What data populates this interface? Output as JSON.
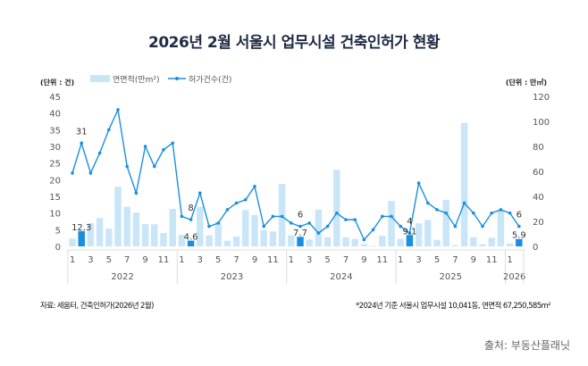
{
  "title": "2026년 2월 서울시 업무시설 건축인허가 현황",
  "notes": {
    "source_left": "자료: 세움터, 건축인허가(2026년 2월)",
    "footnote_right": "*2024년 기준 서울시 업무시설 10,041동, 연면적 67,250,585m²",
    "credit": "출처: 부동산플래닛"
  },
  "chart_data": {
    "type": "bar+line",
    "title": "2026년 2월 서울시 업무시설 건축인허가 현황",
    "left_axis_label": "(단위 : 건)",
    "right_axis_label": "(단위 : 만㎡)",
    "ylim_left": [
      0,
      45
    ],
    "yticks_left": [
      0,
      5,
      10,
      15,
      20,
      25,
      30,
      35,
      40,
      45
    ],
    "ylim_right": [
      0,
      120
    ],
    "yticks_right": [
      0,
      20,
      40,
      60,
      80,
      100,
      120
    ],
    "legend": [
      "연면적(만m²)",
      "허가건수(건)"
    ],
    "legend_position": "top-left",
    "years": [
      {
        "label": "2022",
        "months": 12
      },
      {
        "label": "2023",
        "months": 12
      },
      {
        "label": "2024",
        "months": 12
      },
      {
        "label": "2025",
        "months": 12
      },
      {
        "label": "2026",
        "months": 2
      }
    ],
    "month_ticks": [
      "1",
      "3",
      "5",
      "7",
      "9",
      "11"
    ],
    "colors": {
      "bar": "#c9e6f8",
      "bar_highlight": "#1a8fe0",
      "line": "#1a8fe0"
    },
    "series": [
      {
        "name": "연면적(만m²)",
        "axis": "right",
        "type": "bar",
        "values": [
          6.2,
          12.3,
          18.6,
          22.7,
          14.3,
          47.7,
          31.7,
          27,
          17.9,
          17.7,
          10.7,
          30,
          9.3,
          4.6,
          31.7,
          8.8,
          19,
          4.5,
          7.9,
          29,
          25,
          13,
          12,
          50,
          8.8,
          7.7,
          5.5,
          29.4,
          7.4,
          61.3,
          7.2,
          6,
          1.9,
          0.5,
          8.4,
          36.3,
          6,
          9.1,
          18.4,
          21.2,
          5.2,
          37.2,
          1,
          98.8,
          7.4,
          1.7,
          6.9,
          28.6,
          2.4,
          5.9
        ]
      },
      {
        "name": "허가건수(건)",
        "axis": "left",
        "type": "line",
        "values": [
          22,
          31,
          22,
          28,
          35,
          41,
          24,
          16,
          30,
          24,
          29,
          31,
          9,
          8,
          16,
          6,
          7,
          11,
          13,
          14,
          18,
          6,
          9,
          9,
          7,
          6,
          7,
          4,
          6,
          10,
          8,
          8,
          2,
          5,
          9,
          9,
          6,
          4,
          19,
          13,
          11,
          10,
          6,
          13,
          10,
          6,
          10,
          11,
          10,
          6
        ]
      }
    ],
    "highlight_indices": [
      1,
      13,
      25,
      37,
      49
    ],
    "bar_labels": [
      "12.3",
      "4.6",
      "7.7",
      "9.1",
      "5.9"
    ],
    "line_labels": [
      "31",
      "8",
      "6",
      "4",
      "6"
    ]
  }
}
